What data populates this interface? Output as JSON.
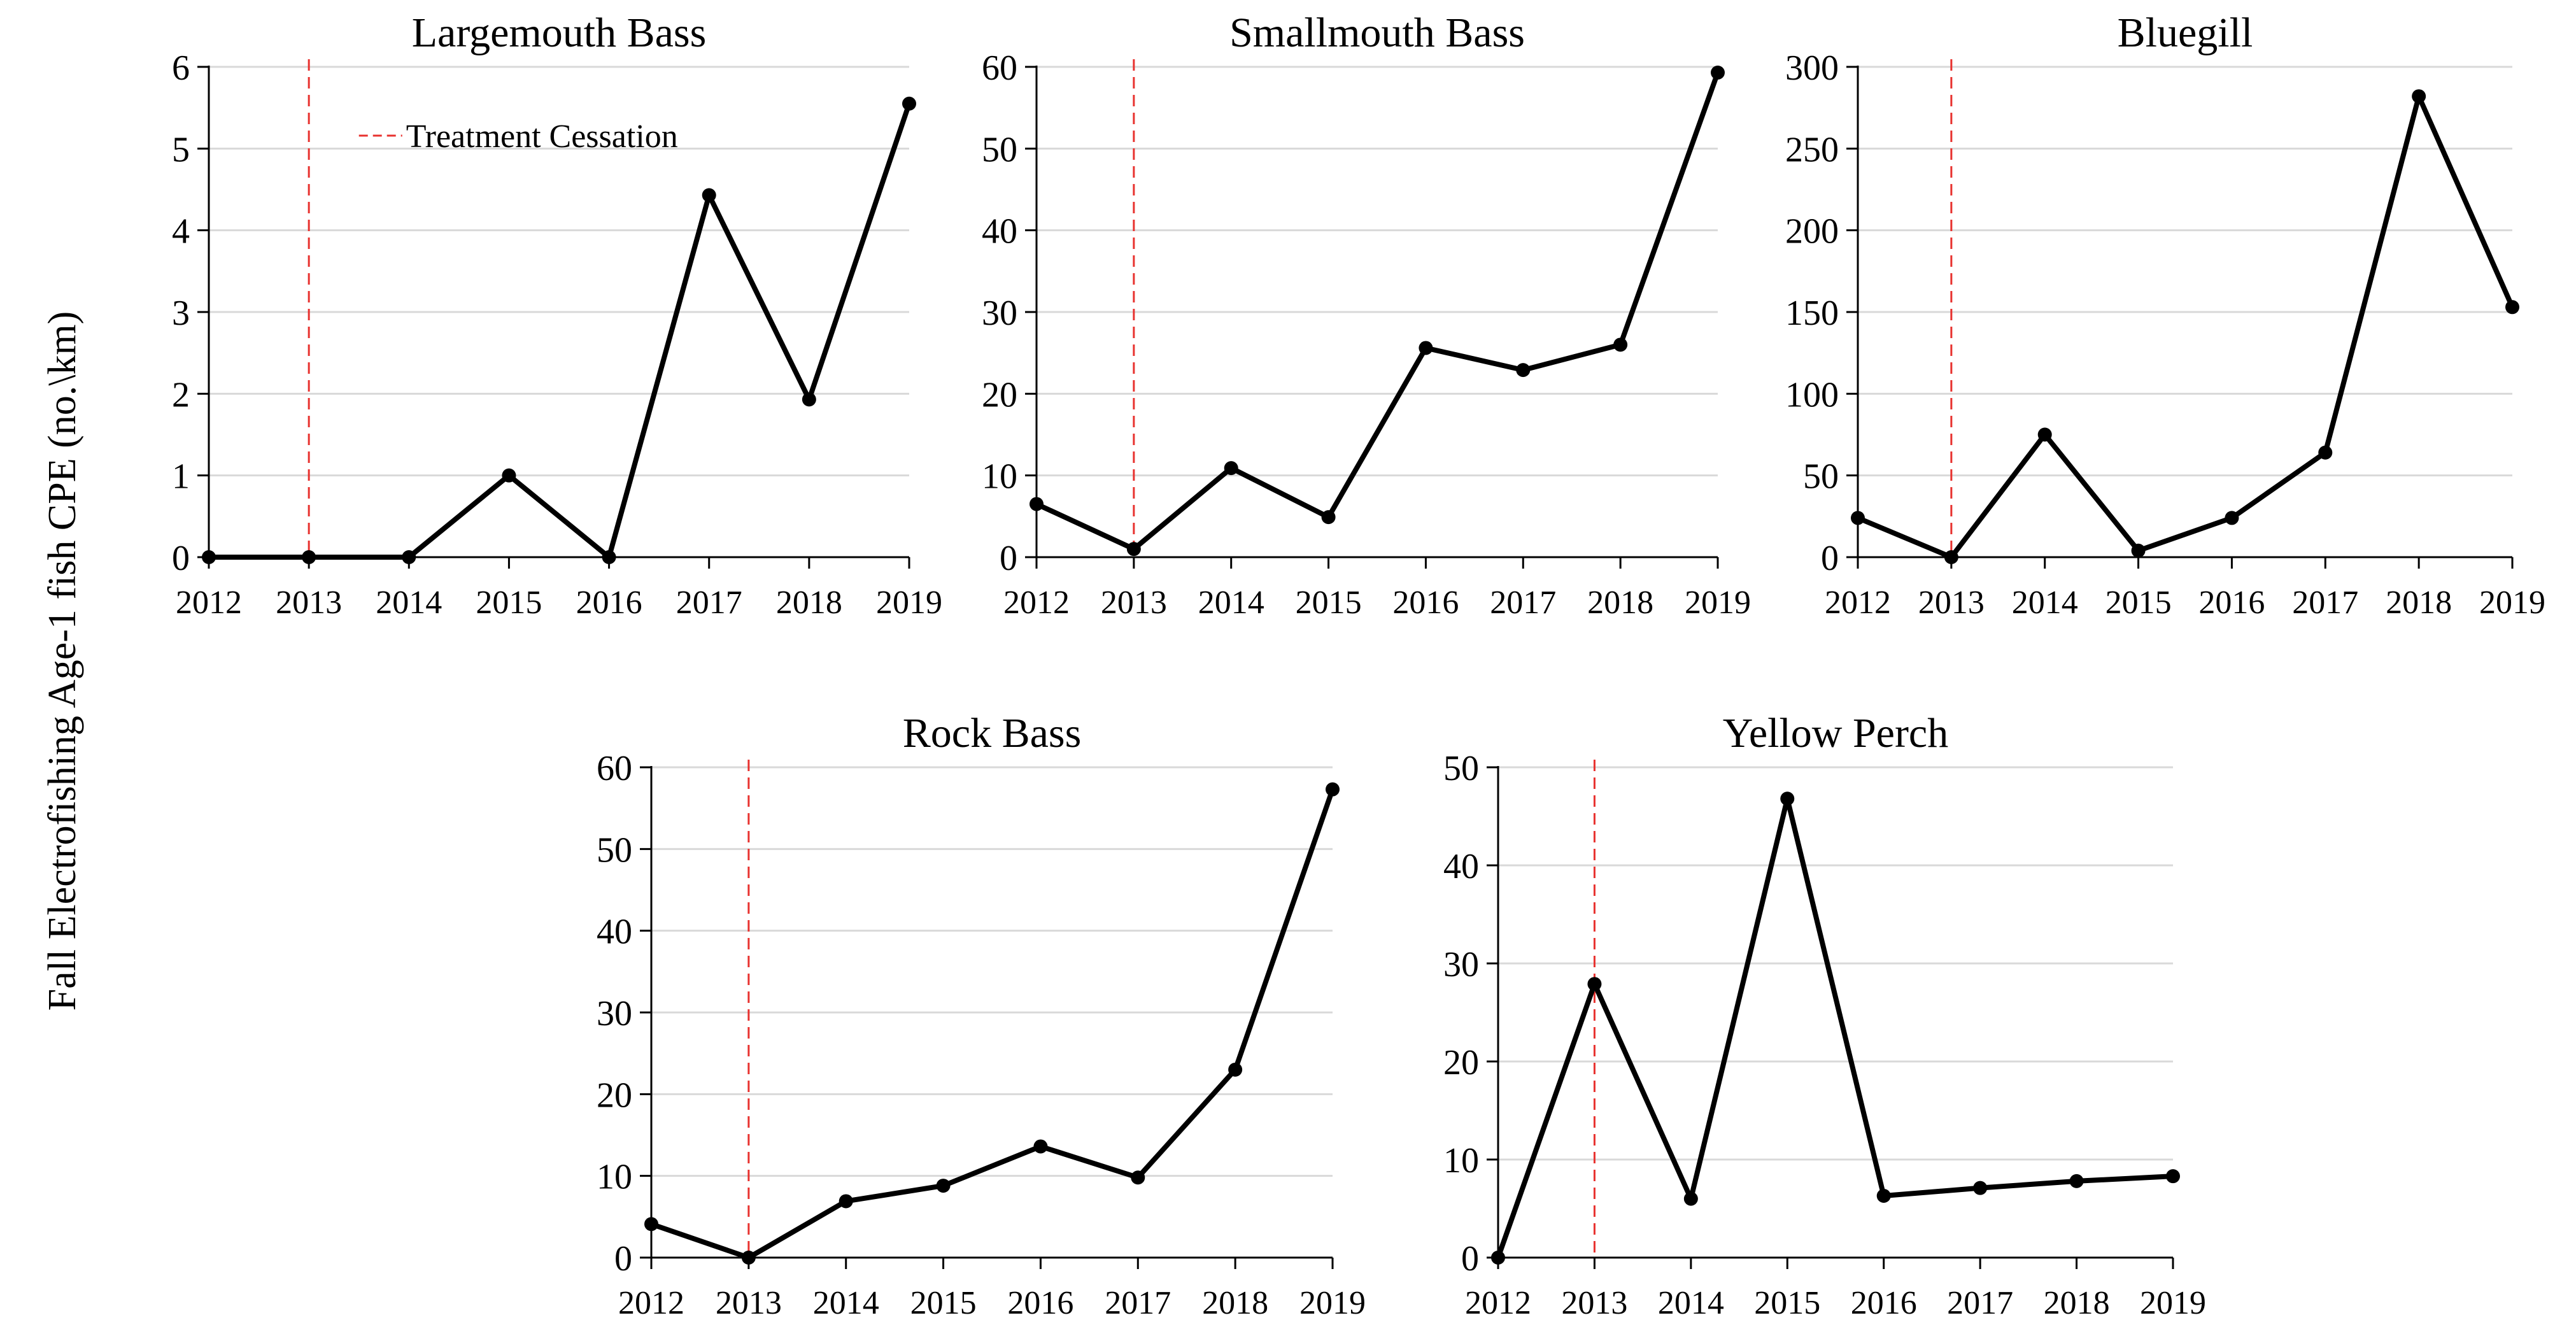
{
  "figure": {
    "ylabel": "Fall Electrofishing Age-1  fish CPE (no.\\km)",
    "legend_label": "Treatment Cessation"
  },
  "colors": {
    "line": "#000000",
    "marker": "#000000",
    "treatment_line": "#e8322f",
    "grid": "#d9d9d9",
    "axis": "#000000"
  },
  "chart_data": [
    {
      "type": "line",
      "title": "Largemouth Bass",
      "x": [
        2012,
        2013,
        2014,
        2015,
        2016,
        2017,
        2018,
        2019
      ],
      "values": [
        0,
        0,
        0,
        1.0,
        0,
        4.43,
        1.93,
        5.55
      ],
      "ylim": [
        0,
        6
      ],
      "yticks": [
        0,
        1,
        2,
        3,
        4,
        5,
        6
      ],
      "treatment_cessation_x": 2013,
      "legend": true,
      "grid": true
    },
    {
      "type": "line",
      "title": "Smallmouth Bass",
      "x": [
        2012,
        2013,
        2014,
        2015,
        2016,
        2017,
        2018,
        2019
      ],
      "values": [
        6.5,
        1.0,
        10.9,
        4.9,
        25.6,
        22.9,
        26.0,
        59.3
      ],
      "ylim": [
        0,
        60
      ],
      "yticks": [
        0,
        10,
        20,
        30,
        40,
        50,
        60
      ],
      "treatment_cessation_x": 2013,
      "grid": true
    },
    {
      "type": "line",
      "title": "Bluegill",
      "x": [
        2012,
        2013,
        2014,
        2015,
        2016,
        2017,
        2018,
        2019
      ],
      "values": [
        24,
        0,
        75,
        4,
        24,
        64,
        282,
        153
      ],
      "ylim": [
        0,
        300
      ],
      "yticks": [
        0,
        50,
        100,
        150,
        200,
        250,
        300
      ],
      "treatment_cessation_x": 2013,
      "grid": true
    },
    {
      "type": "line",
      "title": "Rock Bass",
      "x": [
        2012,
        2013,
        2014,
        2015,
        2016,
        2017,
        2018,
        2019
      ],
      "values": [
        4.1,
        0,
        6.9,
        8.8,
        13.6,
        9.8,
        23.0,
        57.3
      ],
      "ylim": [
        0,
        60
      ],
      "yticks": [
        0,
        10,
        20,
        30,
        40,
        50,
        60
      ],
      "treatment_cessation_x": 2013,
      "grid": true
    },
    {
      "type": "line",
      "title": "Yellow Perch",
      "x": [
        2012,
        2013,
        2014,
        2015,
        2016,
        2017,
        2018,
        2019
      ],
      "values": [
        0,
        27.9,
        6.0,
        46.8,
        6.3,
        7.1,
        7.8,
        8.3
      ],
      "ylim": [
        0,
        50
      ],
      "yticks": [
        0,
        10,
        20,
        30,
        40,
        50
      ],
      "treatment_cessation_x": 2013,
      "grid": true
    }
  ]
}
